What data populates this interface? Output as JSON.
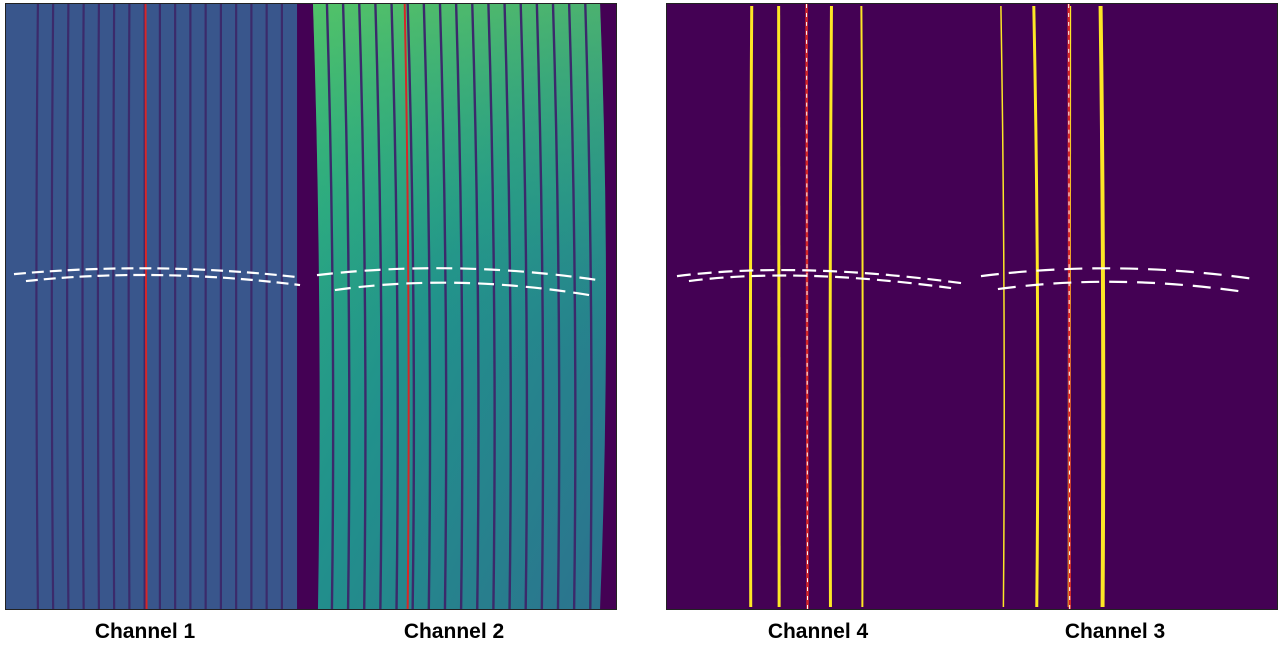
{
  "captions": {
    "channel_1": "Channel 1",
    "channel_2": "Channel 2",
    "channel_4": "Channel 4",
    "channel_3": "Channel 3"
  },
  "colors": {
    "background_dark": "#440154",
    "channel1_fill": "#39568c",
    "channel2_fill": "#35b779",
    "trace_bright": "#fde725",
    "marker_red": "#d62728",
    "dashed_overlay": "#ffffff"
  }
}
